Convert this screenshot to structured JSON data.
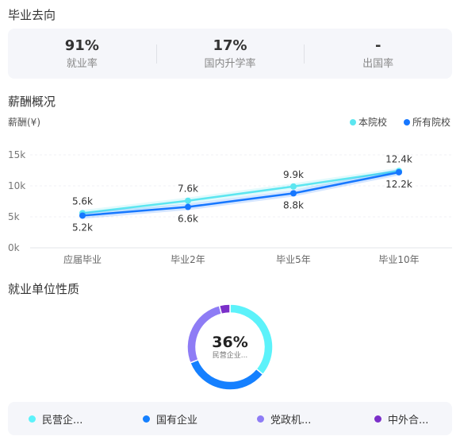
{
  "sections": {
    "destination_title": "毕业去向",
    "salary_title": "薪酬概况",
    "employer_title": "就业单位性质"
  },
  "stats": [
    {
      "value": "91%",
      "label": "就业率"
    },
    {
      "value": "17%",
      "label": "国内升学率"
    },
    {
      "value": "-",
      "label": "出国率"
    }
  ],
  "chart_data": {
    "type": "line",
    "ylabel": "薪酬(¥)",
    "categories": [
      "应届毕业",
      "毕业2年",
      "毕业5年",
      "毕业10年"
    ],
    "y_ticks": [
      "0k",
      "5k",
      "10k",
      "15k"
    ],
    "ylim": [
      0,
      15000
    ],
    "legend_position": "top-right",
    "series": [
      {
        "name": "本院校",
        "color": "#5ce6f0",
        "values": [
          5600,
          7600,
          9900,
          12400
        ],
        "labels": [
          "5.6k",
          "7.6k",
          "9.9k",
          "12.4k"
        ]
      },
      {
        "name": "所有院校",
        "color": "#1677ff",
        "values": [
          5200,
          6600,
          8800,
          12200
        ],
        "labels": [
          "5.2k",
          "6.6k",
          "8.8k",
          "12.2k"
        ]
      }
    ]
  },
  "employer": {
    "center_value": "36%",
    "center_label": "民营企业...",
    "segments": [
      {
        "name": "民营企...",
        "value": 36,
        "color": "#5cf2fa"
      },
      {
        "name": "国有企业",
        "value": 33,
        "color": "#1580ff"
      },
      {
        "name": "党政机...",
        "value": 27,
        "color": "#8e7cf5"
      },
      {
        "name": "中外合...",
        "value": 4,
        "color": "#7b2fc9"
      }
    ]
  }
}
